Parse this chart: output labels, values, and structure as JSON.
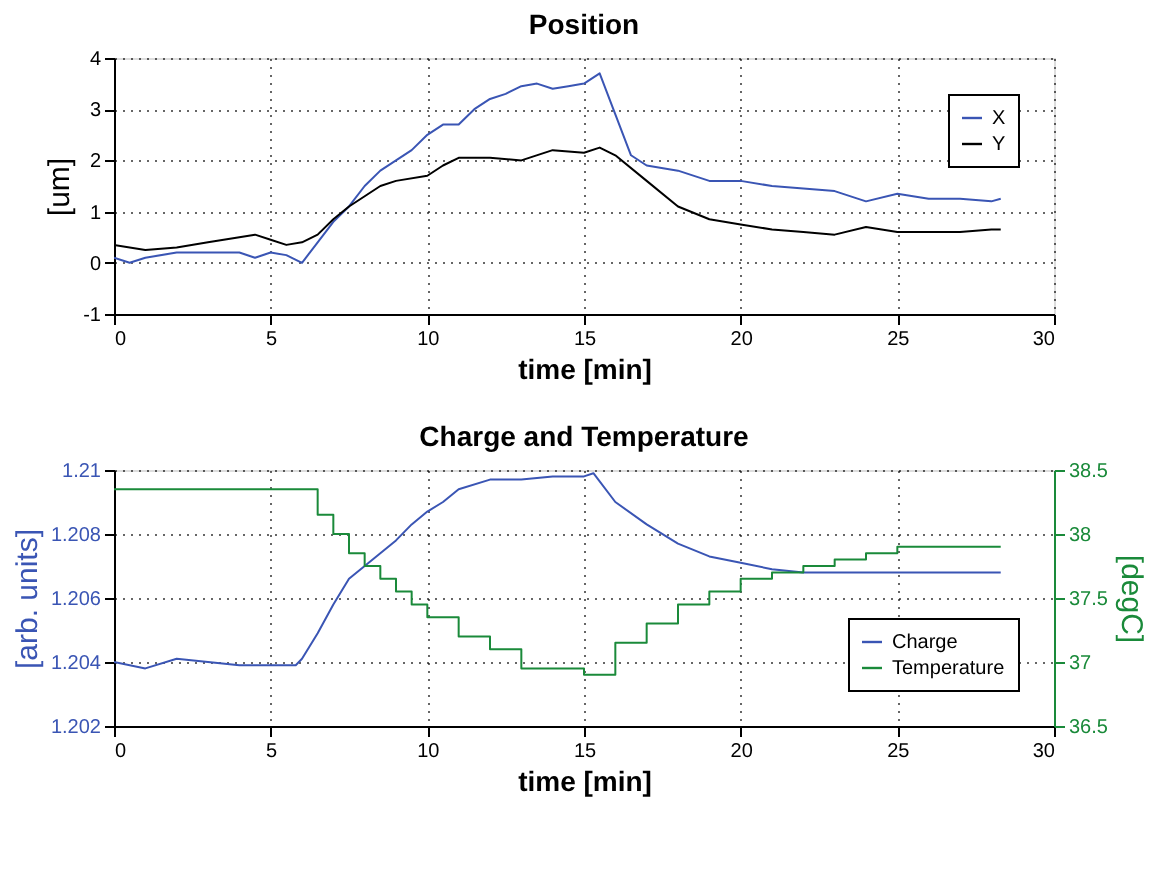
{
  "chart_data": [
    {
      "type": "line",
      "title": "Position",
      "xlabel": "time [min]",
      "ylabel": "[um]",
      "xlim": [
        0,
        30
      ],
      "xticks": [
        0,
        5,
        10,
        15,
        20,
        25,
        30
      ],
      "ylim": [
        -1,
        4
      ],
      "yticks": [
        -1,
        0,
        1,
        2,
        3,
        4
      ],
      "grid": true,
      "legend": "top right",
      "series": [
        {
          "name": "X",
          "color": "#3a55b4",
          "x": [
            0,
            0.5,
            1,
            2,
            3,
            4,
            4.5,
            5,
            5.5,
            6,
            6.5,
            7,
            7.5,
            8,
            8.5,
            9,
            9.5,
            10,
            10.5,
            11,
            11.5,
            12,
            12.5,
            13,
            13.5,
            14,
            14.5,
            15,
            15.5,
            16,
            16.5,
            17,
            18,
            19,
            20,
            21,
            22,
            23,
            24,
            25,
            26,
            27,
            28,
            28.3
          ],
          "values": [
            0.1,
            0.0,
            0.1,
            0.2,
            0.2,
            0.2,
            0.1,
            0.2,
            0.15,
            0.0,
            0.4,
            0.8,
            1.1,
            1.5,
            1.8,
            2.0,
            2.2,
            2.5,
            2.7,
            2.7,
            3.0,
            3.2,
            3.3,
            3.45,
            3.5,
            3.4,
            3.45,
            3.5,
            3.7,
            2.9,
            2.1,
            1.9,
            1.8,
            1.6,
            1.6,
            1.5,
            1.45,
            1.4,
            1.2,
            1.35,
            1.25,
            1.25,
            1.2,
            1.25
          ]
        },
        {
          "name": "Y",
          "color": "#000000",
          "x": [
            0,
            1,
            2,
            3,
            4,
            4.5,
            5,
            5.5,
            6,
            6.5,
            7,
            7.5,
            8,
            8.5,
            9,
            10,
            10.5,
            11,
            12,
            13,
            14,
            15,
            15.5,
            16,
            17,
            18,
            19,
            20,
            21,
            22,
            23,
            24,
            25,
            26,
            27,
            28,
            28.3
          ],
          "values": [
            0.35,
            0.25,
            0.3,
            0.4,
            0.5,
            0.55,
            0.45,
            0.35,
            0.4,
            0.55,
            0.85,
            1.1,
            1.3,
            1.5,
            1.6,
            1.7,
            1.9,
            2.05,
            2.05,
            2.0,
            2.2,
            2.15,
            2.25,
            2.1,
            1.6,
            1.1,
            0.85,
            0.75,
            0.65,
            0.6,
            0.55,
            0.7,
            0.6,
            0.6,
            0.6,
            0.65,
            0.65
          ]
        }
      ]
    },
    {
      "type": "line",
      "title": "Charge and Temperature",
      "xlabel": "time [min]",
      "ylabel": "[arb. units]",
      "y2label": "[degC]",
      "xlim": [
        0,
        30
      ],
      "xticks": [
        0,
        5,
        10,
        15,
        20,
        25,
        30
      ],
      "ylim": [
        1.202,
        1.21
      ],
      "yticks": [
        1.202,
        1.204,
        1.206,
        1.208,
        1.21
      ],
      "y2lim": [
        36.5,
        38.5
      ],
      "y2ticks": [
        36.5,
        37,
        37.5,
        38,
        38.5
      ],
      "grid": true,
      "legend": "bottom right",
      "series": [
        {
          "name": "Charge",
          "color": "#3a55b4",
          "x": [
            0,
            1,
            2,
            3,
            4,
            5,
            5.8,
            6,
            6.5,
            7,
            7.5,
            8,
            8.5,
            9,
            9.5,
            10,
            10.5,
            11,
            12,
            13,
            14,
            15,
            15.3,
            16,
            17,
            18,
            19,
            20,
            21,
            22,
            23,
            24,
            25,
            26,
            27,
            28,
            28.3
          ],
          "values": [
            1.204,
            1.2038,
            1.2041,
            1.204,
            1.2039,
            1.2039,
            1.2039,
            1.2041,
            1.2049,
            1.2058,
            1.2066,
            1.207,
            1.2074,
            1.2078,
            1.2083,
            1.2087,
            1.209,
            1.2094,
            1.2097,
            1.2097,
            1.2098,
            1.2098,
            1.2099,
            1.209,
            1.2083,
            1.2077,
            1.2073,
            1.2071,
            1.2069,
            1.2068,
            1.2068,
            1.2068,
            1.2068,
            1.2068,
            1.2068,
            1.2068,
            1.2068
          ]
        },
        {
          "name": "Temperature",
          "color": "#1a8a3a",
          "type": "step",
          "axis": "y2",
          "x": [
            0,
            5.8,
            6,
            6.5,
            7,
            7.5,
            8,
            8.5,
            9,
            9.5,
            10,
            11,
            12,
            13,
            14,
            15,
            15.3,
            16,
            17,
            18,
            19,
            20,
            21,
            22,
            23,
            24,
            25,
            26,
            27,
            28,
            28.3
          ],
          "values": [
            38.35,
            38.35,
            38.35,
            38.15,
            38.0,
            37.85,
            37.75,
            37.65,
            37.55,
            37.45,
            37.35,
            37.2,
            37.1,
            36.95,
            36.95,
            36.9,
            36.9,
            37.15,
            37.3,
            37.45,
            37.55,
            37.65,
            37.7,
            37.75,
            37.8,
            37.85,
            37.9,
            37.9,
            37.9,
            37.9,
            37.9
          ]
        }
      ]
    }
  ]
}
